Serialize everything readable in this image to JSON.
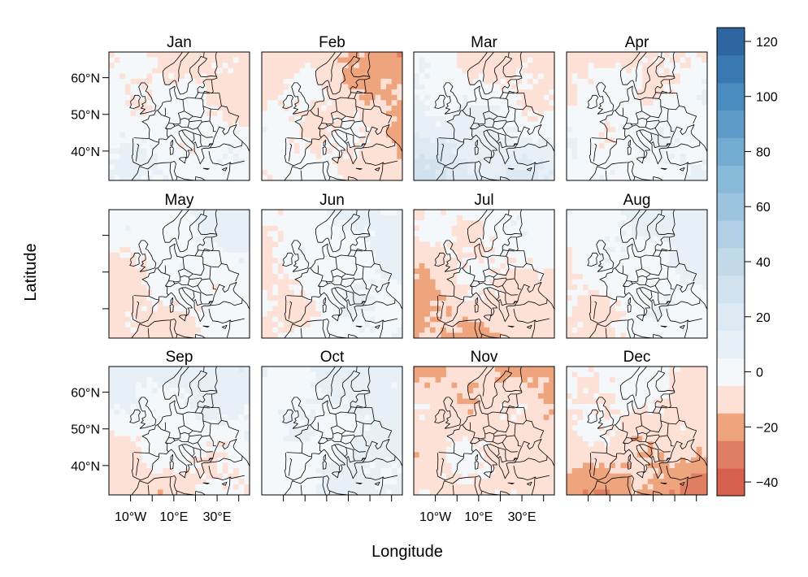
{
  "chart_data": {
    "type": "heatmap",
    "title": "",
    "xlabel": "Longitude",
    "ylabel": "Latitude",
    "panels": [
      "Jan",
      "Feb",
      "Mar",
      "Apr",
      "May",
      "Jun",
      "Jul",
      "Aug",
      "Sep",
      "Oct",
      "Nov",
      "Dec"
    ],
    "layout": {
      "rows": 3,
      "cols": 4
    },
    "lon_range": [
      -20,
      45
    ],
    "lat_range": [
      32,
      67
    ],
    "lat_ticks": [
      {
        "value": 40,
        "label": "40°N"
      },
      {
        "value": 50,
        "label": "50°N"
      },
      {
        "value": 60,
        "label": "60°N"
      }
    ],
    "lon_ticks": [
      {
        "value": -10,
        "label": "10°W"
      },
      {
        "value": 10,
        "label": "10°E"
      },
      {
        "value": 30,
        "label": "30°E"
      }
    ],
    "lat_labels_on_rows": [
      0,
      2
    ],
    "lon_labels_on_cols": [
      0,
      2
    ],
    "colorbar": {
      "min": -45,
      "max": 125,
      "step": 10,
      "ticks": [
        -40,
        -20,
        0,
        20,
        40,
        60,
        80,
        100,
        120
      ],
      "colors": [
        "#d6604d",
        "#e07e63",
        "#eea47d",
        "#fde0d6",
        "#f5f8fb",
        "#e8f0f7",
        "#dde9f3",
        "#d1e2ee",
        "#c2d9ea",
        "#b0cfe5",
        "#9dc4df",
        "#89b9d9",
        "#73abd1",
        "#5e9bc8",
        "#4a8bbf",
        "#3a78b2",
        "#2d66a0"
      ]
    },
    "monthly_anomaly_pattern": {
      "Jan": {
        "west": 2,
        "north": -8,
        "south": 4,
        "east": -4
      },
      "Feb": {
        "west": 0,
        "north": -10,
        "south": 0,
        "east": -14
      },
      "Mar": {
        "west": 12,
        "north": -12,
        "south": 16,
        "east": -2
      },
      "Apr": {
        "west": 2,
        "north": -10,
        "south": 0,
        "east": 6
      },
      "May": {
        "west": -8,
        "north": 6,
        "south": -6,
        "east": 4
      },
      "Jun": {
        "west": -10,
        "north": 6,
        "south": 2,
        "east": 4
      },
      "Jul": {
        "west": -12,
        "north": 4,
        "south": -10,
        "east": -4
      },
      "Aug": {
        "west": -6,
        "north": 8,
        "south": -2,
        "east": 6
      },
      "Sep": {
        "west": -4,
        "north": 12,
        "south": -8,
        "east": 2
      },
      "Oct": {
        "west": -6,
        "north": 10,
        "south": 8,
        "east": 4
      },
      "Nov": {
        "west": -6,
        "north": -12,
        "south": -4,
        "east": -8
      },
      "Dec": {
        "west": -4,
        "north": 2,
        "south": -18,
        "east": -10
      }
    }
  }
}
